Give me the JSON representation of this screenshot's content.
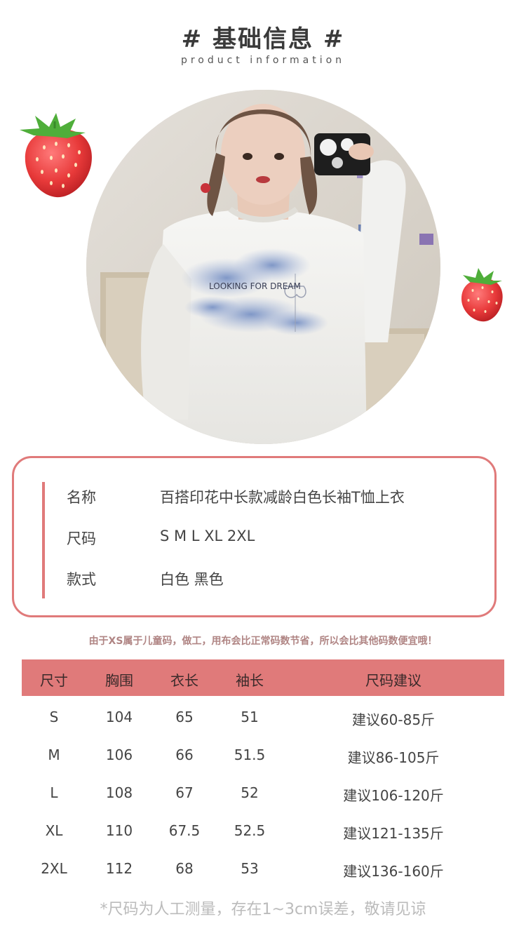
{
  "header": {
    "title": "# 基础信息 #",
    "subtitle": "product information"
  },
  "photo": {
    "shirt_text": "LOOKING FOR DREAM"
  },
  "info": {
    "rows": [
      {
        "key": "名称",
        "value": "百搭印花中长款减龄白色长袖T恤上衣"
      },
      {
        "key": "尺码",
        "value": "S M L XL 2XL"
      },
      {
        "key": "款式",
        "value": "白色 黑色"
      }
    ]
  },
  "note": "由于XS属于儿童码，做工，用布会比正常码数节省，所以会比其他码数便宜哦！",
  "size_table": {
    "headers": [
      "尺寸",
      "胸围",
      "衣长",
      "袖长",
      "尺码建议"
    ],
    "rows": [
      [
        "S",
        "104",
        "65",
        "51",
        "建议60-85斤"
      ],
      [
        "M",
        "106",
        "66",
        "51.5",
        "建议86-105斤"
      ],
      [
        "L",
        "108",
        "67",
        "52",
        "建议106-120斤"
      ],
      [
        "XL",
        "110",
        "67.5",
        "52.5",
        "建议121-135斤"
      ],
      [
        "2XL",
        "112",
        "68",
        "53",
        "建议136-160斤"
      ]
    ]
  },
  "footer": "*尺码为人工测量，存在1~3cm误差，敬请见谅",
  "colors": {
    "accent": "#e07a7a",
    "note": "#b08584"
  }
}
